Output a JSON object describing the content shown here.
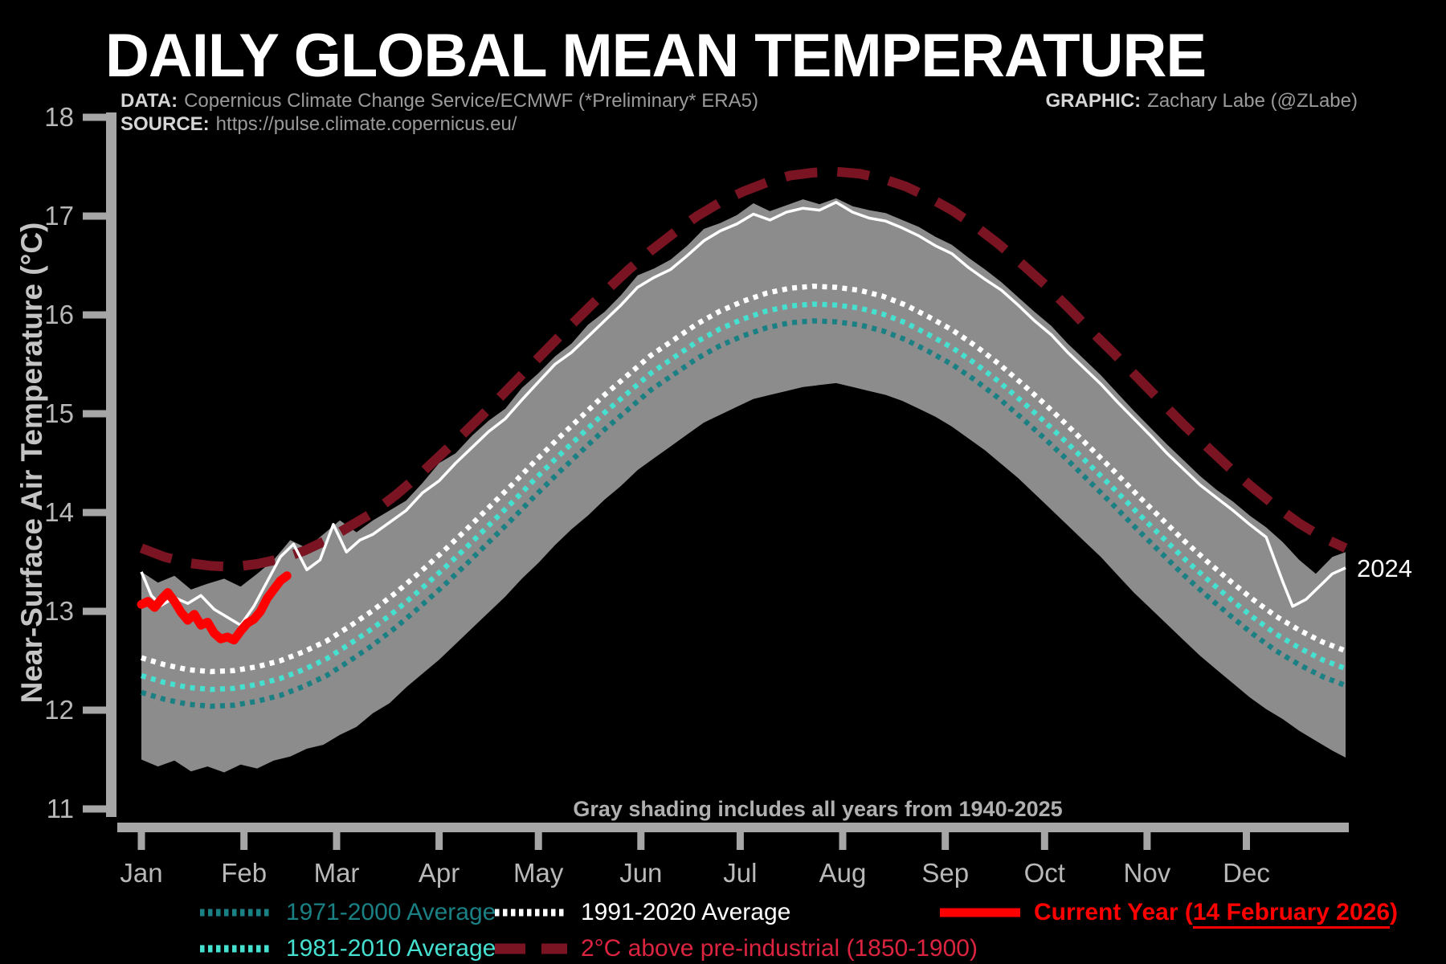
{
  "title": "DAILY GLOBAL MEAN TEMPERATURE",
  "credits": {
    "data_label": "DATA:",
    "data_value": "Copernicus Climate Change Service/ECMWF (*Preliminary* ERA5)",
    "source_label": "SOURCE:",
    "source_value": "https://pulse.climate.copernicus.eu/",
    "graphic_label": "GRAPHIC:",
    "graphic_value": "Zachary Labe (@ZLabe)"
  },
  "annotations": {
    "band_note": "Gray shading includes all years from 1940-2025",
    "year_end_label": "2024"
  },
  "legend": {
    "items": [
      {
        "label": "1971-2000 Average",
        "color": "#1a8084",
        "style": "dotted"
      },
      {
        "label": "1981-2010 Average",
        "color": "#45e0cf",
        "style": "dotted"
      },
      {
        "label": "1991-2020 Average",
        "color": "#ffffff",
        "style": "dotted"
      },
      {
        "label": "2°C above pre-industrial (1850-1900)",
        "color": "#dc2440",
        "line_color": "#7a1322",
        "style": "dashed"
      },
      {
        "label_prefix": "Current Year (",
        "label_date": "14 February 2026",
        "label_suffix": ")",
        "color": "#ff0000",
        "style": "solid"
      }
    ]
  },
  "chart_data": {
    "type": "line",
    "title": "Daily global mean near-surface air temperature by day of year",
    "ylabel": "Near-Surface Air Temperature (°C)",
    "xlabel": "",
    "ylim": [
      11,
      18
    ],
    "y_ticks": [
      11,
      12,
      13,
      14,
      15,
      16,
      17,
      18
    ],
    "x_tick_labels": [
      "Jan",
      "Feb",
      "Mar",
      "Apr",
      "May",
      "Jun",
      "Jul",
      "Aug",
      "Sep",
      "Oct",
      "Nov",
      "Dec"
    ],
    "x_tick_days": [
      0,
      31,
      59,
      90,
      120,
      151,
      181,
      212,
      243,
      273,
      304,
      334
    ],
    "days_per_year": 365,
    "grid": false,
    "legend_position": "bottom",
    "axis_color": "#a6a6a6",
    "tick_label_color": "#b8b8b8",
    "note_color": "#b0b0b0",
    "grids": {
      "weekly": [
        0,
        7,
        14,
        21,
        28,
        35,
        42,
        49,
        56,
        63,
        70,
        77,
        84,
        91,
        98,
        105,
        112,
        119,
        126,
        133,
        140,
        147,
        154,
        161,
        168,
        175,
        182,
        189,
        196,
        203,
        210,
        217,
        224,
        231,
        238,
        245,
        252,
        259,
        266,
        273,
        280,
        287,
        294,
        301,
        308,
        315,
        322,
        329,
        336,
        343,
        350,
        357,
        364
      ],
      "fine": [
        0,
        5,
        10,
        15,
        20,
        25,
        30,
        35,
        40,
        45,
        50,
        55,
        60,
        65,
        70,
        75,
        80,
        85,
        90,
        95,
        100,
        105,
        110,
        115,
        120,
        125,
        130,
        135,
        140,
        145,
        150,
        155,
        160,
        165,
        170,
        175,
        180,
        185,
        190,
        195,
        200,
        205,
        210,
        215,
        220,
        225,
        230,
        235,
        240,
        245,
        250,
        255,
        260,
        265,
        270,
        275,
        280,
        285,
        290,
        295,
        300,
        305,
        310,
        315,
        320,
        325,
        330,
        335,
        340,
        345,
        350,
        355,
        360,
        364
      ],
      "year2024": [
        0,
        3,
        6,
        10,
        14,
        18,
        22,
        26,
        30,
        34,
        38,
        42,
        46,
        50,
        54,
        58,
        62,
        66,
        70,
        75,
        80,
        85,
        90,
        95,
        100,
        105,
        110,
        115,
        120,
        125,
        130,
        135,
        140,
        145,
        150,
        155,
        160,
        165,
        170,
        175,
        180,
        185,
        190,
        195,
        200,
        205,
        210,
        215,
        220,
        225,
        230,
        235,
        240,
        245,
        250,
        255,
        260,
        265,
        270,
        275,
        280,
        285,
        290,
        295,
        300,
        305,
        310,
        315,
        320,
        325,
        330,
        335,
        340,
        345,
        348,
        352,
        356,
        360,
        364
      ],
      "current": [
        0,
        2,
        4,
        6,
        8,
        10,
        12,
        14,
        16,
        18,
        20,
        22,
        24,
        26,
        28,
        30,
        32,
        34,
        36,
        38,
        40,
        42,
        44
      ]
    },
    "band": {
      "name": "Gray shading includes all years from 1940-2025",
      "color": "#8c8c8c",
      "grid": "fine",
      "upper": [
        13.4,
        13.29,
        13.36,
        13.22,
        13.28,
        13.33,
        13.25,
        13.38,
        13.52,
        13.72,
        13.64,
        13.78,
        13.92,
        13.8,
        13.92,
        14.02,
        14.12,
        14.3,
        14.5,
        14.6,
        14.78,
        14.93,
        15.05,
        15.26,
        15.41,
        15.58,
        15.71,
        15.9,
        16.03,
        16.2,
        16.4,
        16.47,
        16.56,
        16.7,
        16.87,
        16.93,
        17.01,
        17.13,
        17.05,
        17.11,
        17.17,
        17.12,
        17.18,
        17.1,
        17.06,
        17.03,
        16.96,
        16.89,
        16.79,
        16.71,
        16.58,
        16.46,
        16.33,
        16.18,
        16.03,
        15.89,
        15.71,
        15.55,
        15.39,
        15.21,
        15.03,
        14.86,
        14.69,
        14.53,
        14.37,
        14.23,
        14.11,
        13.97,
        13.85,
        13.7,
        13.52,
        13.38,
        13.55,
        13.6
      ],
      "lower": [
        11.5,
        11.43,
        11.49,
        11.38,
        11.43,
        11.37,
        11.45,
        11.41,
        11.49,
        11.53,
        11.61,
        11.65,
        11.75,
        11.83,
        11.97,
        12.07,
        12.23,
        12.37,
        12.51,
        12.67,
        12.83,
        12.99,
        13.15,
        13.33,
        13.49,
        13.67,
        13.83,
        13.97,
        14.13,
        14.27,
        14.43,
        14.55,
        14.67,
        14.79,
        14.91,
        14.99,
        15.07,
        15.15,
        15.19,
        15.23,
        15.27,
        15.29,
        15.31,
        15.27,
        15.23,
        15.19,
        15.13,
        15.05,
        14.97,
        14.87,
        14.75,
        14.63,
        14.49,
        14.35,
        14.19,
        14.03,
        13.87,
        13.71,
        13.55,
        13.37,
        13.19,
        13.03,
        12.87,
        12.71,
        12.55,
        12.41,
        12.27,
        12.13,
        12.01,
        11.91,
        11.79,
        11.69,
        11.59,
        11.52
      ]
    },
    "series": [
      {
        "id": "avg-1971-2000",
        "name": "1971-2000 Average",
        "color": "#1a8084",
        "grid": "weekly",
        "width": 6.5,
        "dash": "6 6.5",
        "values": [
          12.18,
          12.11,
          12.06,
          12.04,
          12.05,
          12.09,
          12.15,
          12.24,
          12.35,
          12.5,
          12.66,
          12.84,
          13.04,
          13.25,
          13.47,
          13.7,
          13.93,
          14.17,
          14.4,
          14.62,
          14.84,
          15.04,
          15.24,
          15.4,
          15.56,
          15.69,
          15.79,
          15.87,
          15.92,
          15.94,
          15.93,
          15.9,
          15.84,
          15.75,
          15.63,
          15.5,
          15.34,
          15.16,
          14.96,
          14.75,
          14.53,
          14.3,
          14.07,
          13.83,
          13.6,
          13.37,
          13.16,
          12.96,
          12.77,
          12.6,
          12.46,
          12.34,
          12.25
        ]
      },
      {
        "id": "avg-1981-2010",
        "name": "1981-2010 Average",
        "color": "#45e0cf",
        "grid": "weekly",
        "width": 6.5,
        "dash": "6 6.5",
        "values": [
          12.35,
          12.28,
          12.23,
          12.21,
          12.22,
          12.26,
          12.32,
          12.41,
          12.52,
          12.67,
          12.83,
          13.01,
          13.21,
          13.42,
          13.64,
          13.87,
          14.1,
          14.34,
          14.57,
          14.79,
          15.01,
          15.21,
          15.41,
          15.57,
          15.73,
          15.86,
          15.96,
          16.04,
          16.09,
          16.11,
          16.1,
          16.07,
          16.01,
          15.92,
          15.8,
          15.67,
          15.51,
          15.33,
          15.13,
          14.92,
          14.7,
          14.47,
          14.24,
          14.0,
          13.77,
          13.54,
          13.33,
          13.13,
          12.94,
          12.77,
          12.63,
          12.51,
          12.42
        ]
      },
      {
        "id": "avg-1991-2020",
        "name": "1991-2020 Average",
        "color": "#ffffff",
        "grid": "weekly",
        "width": 6.5,
        "dash": "6 6.5",
        "values": [
          12.53,
          12.46,
          12.41,
          12.39,
          12.4,
          12.44,
          12.5,
          12.59,
          12.7,
          12.85,
          13.01,
          13.19,
          13.39,
          13.6,
          13.82,
          14.05,
          14.28,
          14.52,
          14.75,
          14.97,
          15.19,
          15.39,
          15.59,
          15.75,
          15.91,
          16.04,
          16.14,
          16.22,
          16.27,
          16.29,
          16.28,
          16.25,
          16.19,
          16.1,
          15.98,
          15.85,
          15.69,
          15.51,
          15.31,
          15.1,
          14.88,
          14.65,
          14.42,
          14.18,
          13.95,
          13.72,
          13.51,
          13.31,
          13.12,
          12.95,
          12.81,
          12.69,
          12.6
        ]
      },
      {
        "id": "two-deg-preindustrial",
        "name": "2°C above pre-industrial (1850-1900)",
        "color": "#7a1322",
        "grid": "weekly",
        "width": 12,
        "dash": "40 25",
        "values": [
          13.64,
          13.55,
          13.49,
          13.46,
          13.45,
          13.48,
          13.53,
          13.61,
          13.72,
          13.86,
          14.0,
          14.18,
          14.38,
          14.6,
          14.82,
          15.05,
          15.29,
          15.53,
          15.77,
          16.0,
          16.23,
          16.45,
          16.65,
          16.83,
          17.0,
          17.14,
          17.25,
          17.34,
          17.41,
          17.44,
          17.45,
          17.43,
          17.38,
          17.3,
          17.19,
          17.06,
          16.9,
          16.72,
          16.52,
          16.31,
          16.08,
          15.84,
          15.61,
          15.37,
          15.13,
          14.89,
          14.67,
          14.45,
          14.25,
          14.06,
          13.89,
          13.75,
          13.64
        ]
      },
      {
        "id": "year-2024",
        "name": "2024",
        "color": "#ffffff",
        "grid": "year2024",
        "width": 3.5,
        "values": [
          13.4,
          13.16,
          13.06,
          13.14,
          13.08,
          13.16,
          13.02,
          12.94,
          12.86,
          13.05,
          13.3,
          13.55,
          13.68,
          13.42,
          13.52,
          13.88,
          13.6,
          13.72,
          13.78,
          13.9,
          14.02,
          14.2,
          14.32,
          14.5,
          14.66,
          14.82,
          14.95,
          15.14,
          15.32,
          15.5,
          15.62,
          15.78,
          15.94,
          16.1,
          16.28,
          16.38,
          16.46,
          16.6,
          16.75,
          16.85,
          16.92,
          17.02,
          16.96,
          17.04,
          17.08,
          17.06,
          17.14,
          17.04,
          16.98,
          16.95,
          16.88,
          16.8,
          16.7,
          16.62,
          16.48,
          16.36,
          16.25,
          16.1,
          15.94,
          15.8,
          15.62,
          15.46,
          15.3,
          15.12,
          14.95,
          14.78,
          14.6,
          14.44,
          14.28,
          14.15,
          14.02,
          13.88,
          13.75,
          13.3,
          13.05,
          13.12,
          13.25,
          13.38,
          13.44
        ]
      },
      {
        "id": "current-year-2026",
        "name": "Current Year (14 February 2026)",
        "color": "#ff0000",
        "grid": "current",
        "width": 11,
        "cap": "round",
        "values": [
          13.07,
          13.1,
          13.04,
          13.12,
          13.19,
          13.1,
          12.99,
          12.91,
          12.97,
          12.86,
          12.89,
          12.78,
          12.72,
          12.74,
          12.71,
          12.8,
          12.88,
          12.92,
          13.0,
          13.13,
          13.22,
          13.31,
          13.36
        ]
      }
    ]
  }
}
